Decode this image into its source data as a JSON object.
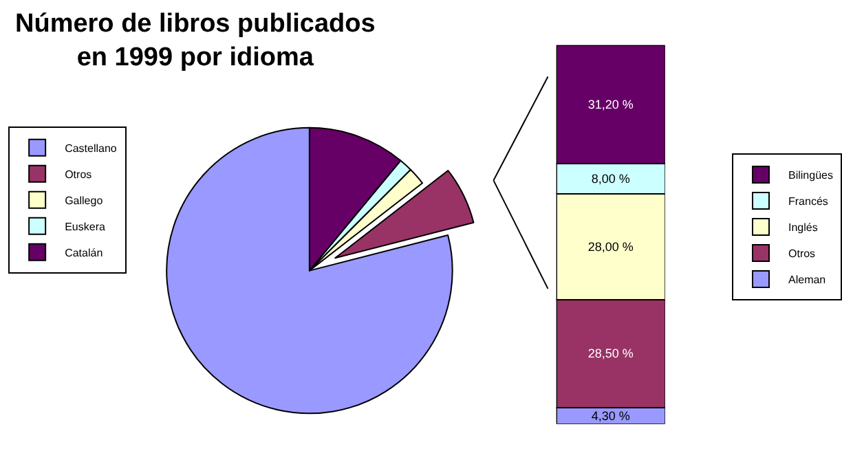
{
  "chart_data": [
    {
      "type": "pie",
      "title": "Número de libros publicados\nen 1999 por idioma",
      "categories": [
        "Castellano",
        "Otros",
        "Gallego",
        "Euskera",
        "Catalán"
      ],
      "values": [
        79,
        6.5,
        2,
        1.5,
        11
      ],
      "colors": [
        "#9999ff",
        "#993366",
        "#ffffcc",
        "#ccffff",
        "#660066"
      ],
      "legend": "left"
    },
    {
      "type": "bar",
      "stacked": true,
      "categories": [
        null
      ],
      "series": [
        {
          "name": "Aleman",
          "color": "#9999ff",
          "values": [
            4.3
          ],
          "value_labels": [
            "4,30 %"
          ]
        },
        {
          "name": "Otros",
          "color": "#993366",
          "values": [
            28.5
          ],
          "value_labels": [
            "28,50 %"
          ]
        },
        {
          "name": "Inglés",
          "color": "#ffffcc",
          "values": [
            28.0
          ],
          "value_labels": [
            "28,00 %"
          ]
        },
        {
          "name": "Francés",
          "color": "#ccffff",
          "values": [
            8.0
          ],
          "value_labels": [
            "8,00 %"
          ]
        },
        {
          "name": "Bilingües",
          "color": "#660066",
          "values": [
            31.2
          ],
          "value_labels": [
            "31,20 %"
          ]
        }
      ],
      "legend": "right"
    }
  ]
}
